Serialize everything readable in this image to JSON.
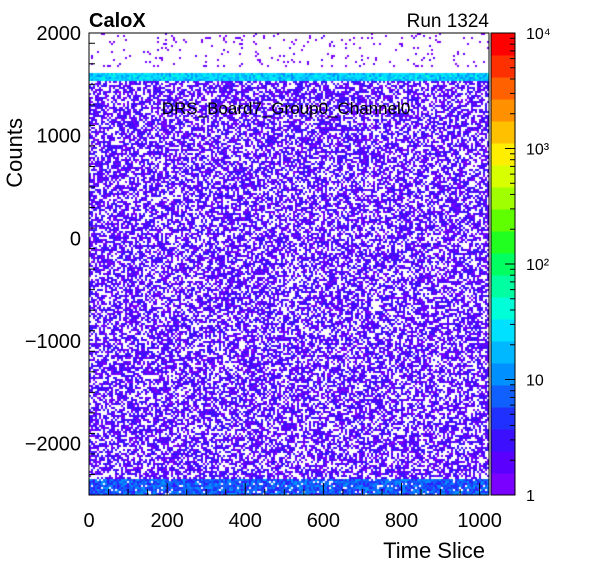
{
  "header": {
    "experiment": "CaloX",
    "run": "Run 1324"
  },
  "chart_data": {
    "type": "heatmap",
    "title": "DRS_Board7_Group0_Channel0",
    "xlabel": "Time Slice",
    "ylabel": "Counts",
    "xlim": [
      0,
      1024
    ],
    "ylim": [
      -2500,
      2000
    ],
    "x_ticks": [
      "0",
      "200",
      "400",
      "600",
      "800",
      "1000"
    ],
    "x_tick_values": [
      0,
      200,
      400,
      600,
      800,
      1000
    ],
    "y_ticks": [
      "−2000",
      "−1000",
      "0",
      "1000",
      "2000"
    ],
    "y_tick_values": [
      -2000,
      -1000,
      0,
      1000,
      2000
    ],
    "z_scale": "log",
    "zlim": [
      1,
      10000
    ],
    "z_ticks": [
      "1",
      "10",
      "10²",
      "10³",
      "10⁴"
    ],
    "z_tick_values": [
      1,
      10,
      100,
      1000,
      10000
    ],
    "palette": [
      "#7a00ff",
      "#5a00ff",
      "#3c10ff",
      "#2030ff",
      "#1060ff",
      "#0090ff",
      "#00b8ff",
      "#00e0ff",
      "#00ffd8",
      "#00ffa0",
      "#00ff60",
      "#20ff20",
      "#60ff00",
      "#a0ff00",
      "#d8ff00",
      "#ffee00",
      "#ffc000",
      "#ff9000",
      "#ff6000",
      "#ff3000",
      "#ff0000"
    ],
    "bands": [
      {
        "description": "sparse entries above baseline",
        "y_range": [
          1670,
          2000
        ],
        "typical_count": 1
      },
      {
        "description": "dense baseline band",
        "y_range": [
          1540,
          1620
        ],
        "typical_count": 20
      },
      {
        "description": "uniform noise region",
        "y_range": [
          -2350,
          1540
        ],
        "typical_count": 2
      },
      {
        "description": "dense lower band",
        "y_range": [
          -2500,
          -2350
        ],
        "typical_count": 6
      }
    ]
  }
}
